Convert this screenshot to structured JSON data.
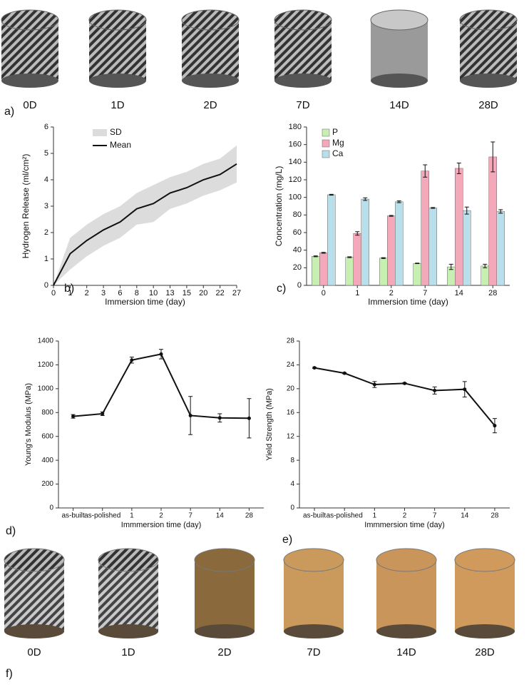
{
  "panel_labels": [
    "a)",
    "b)",
    "c)",
    "d)",
    "e)",
    "f)"
  ],
  "top_photos": [
    "0D",
    "1D",
    "2D",
    "7D",
    "14D",
    "28D"
  ],
  "bottom_photos": [
    "0D",
    "1D",
    "2D",
    "7D",
    "14D",
    "28D"
  ],
  "chart_data": [
    {
      "type": "line",
      "x_label": "Immersion time (day)",
      "y_label": "Hydrogen Release (ml/cm²)",
      "categories": [
        "0",
        "1",
        "2",
        "3",
        "6",
        "8",
        "10",
        "13",
        "15",
        "20",
        "22",
        "27"
      ],
      "ylim": [
        0,
        6
      ],
      "yticks": [
        0,
        1,
        2,
        3,
        4,
        5,
        6
      ],
      "legend": "top-left",
      "series": [
        {
          "name": "SD",
          "color": "#dcdcdc",
          "low": [
            0,
            0.6,
            1.1,
            1.5,
            1.8,
            2.3,
            2.4,
            2.9,
            3.1,
            3.4,
            3.6,
            3.9
          ],
          "high": [
            0,
            1.8,
            2.3,
            2.7,
            3.0,
            3.5,
            3.8,
            4.1,
            4.3,
            4.6,
            4.8,
            5.3
          ]
        },
        {
          "name": "Mean",
          "color": "#111111",
          "values": [
            0,
            1.2,
            1.7,
            2.1,
            2.4,
            2.9,
            3.1,
            3.5,
            3.7,
            4.0,
            4.2,
            4.6
          ]
        }
      ]
    },
    {
      "type": "bar",
      "x_label": "Immersion time (day)",
      "y_label": "Concentration (mg/L)",
      "categories": [
        "0",
        "1",
        "2",
        "7",
        "14",
        "28"
      ],
      "ylim": [
        0,
        180
      ],
      "yticks": [
        0,
        20,
        40,
        60,
        80,
        100,
        120,
        140,
        160,
        180
      ],
      "legend": "top-left",
      "series": [
        {
          "name": "P",
          "color": "#c8efb2",
          "values": [
            33,
            32,
            31,
            25,
            21,
            22
          ],
          "errors": [
            0.5,
            0.5,
            0.5,
            0.3,
            3,
            2
          ]
        },
        {
          "name": "Mg",
          "color": "#f4a9bb",
          "values": [
            37,
            59,
            79,
            130,
            133,
            146
          ],
          "errors": [
            0.5,
            2,
            0.5,
            7,
            6,
            17
          ]
        },
        {
          "name": "Ca",
          "color": "#b8dfea",
          "values": [
            103,
            98,
            95,
            88,
            85,
            84
          ],
          "errors": [
            0.5,
            1.5,
            1,
            0.5,
            4,
            2
          ]
        }
      ]
    },
    {
      "type": "line",
      "x_label": "Immmersion time (day)",
      "y_label": "Young's Modulus (MPa)",
      "categories": [
        "as-built",
        "as-polished",
        "1",
        "2",
        "7",
        "14",
        "28"
      ],
      "ylim": [
        0,
        1400
      ],
      "yticks": [
        0,
        200,
        400,
        600,
        800,
        1000,
        1200,
        1400
      ],
      "series": [
        {
          "color": "#111111",
          "values": [
            768,
            790,
            1240,
            1290,
            775,
            755,
            752
          ],
          "errors": [
            15,
            15,
            25,
            40,
            160,
            35,
            165
          ]
        }
      ]
    },
    {
      "type": "line",
      "x_label": "Immmersion time (day)",
      "y_label": "Yield Strength (MPa)",
      "categories": [
        "as-built",
        "as-polished",
        "1",
        "2",
        "7",
        "14",
        "28"
      ],
      "ylim": [
        0,
        28
      ],
      "yticks": [
        0,
        4,
        8,
        12,
        16,
        20,
        24,
        28
      ],
      "series": [
        {
          "color": "#111111",
          "values": [
            23.5,
            22.6,
            20.7,
            20.9,
            19.7,
            19.9,
            13.8
          ],
          "errors": [
            0.1,
            0.1,
            0.5,
            0.1,
            0.6,
            1.3,
            1.2
          ]
        }
      ]
    }
  ]
}
